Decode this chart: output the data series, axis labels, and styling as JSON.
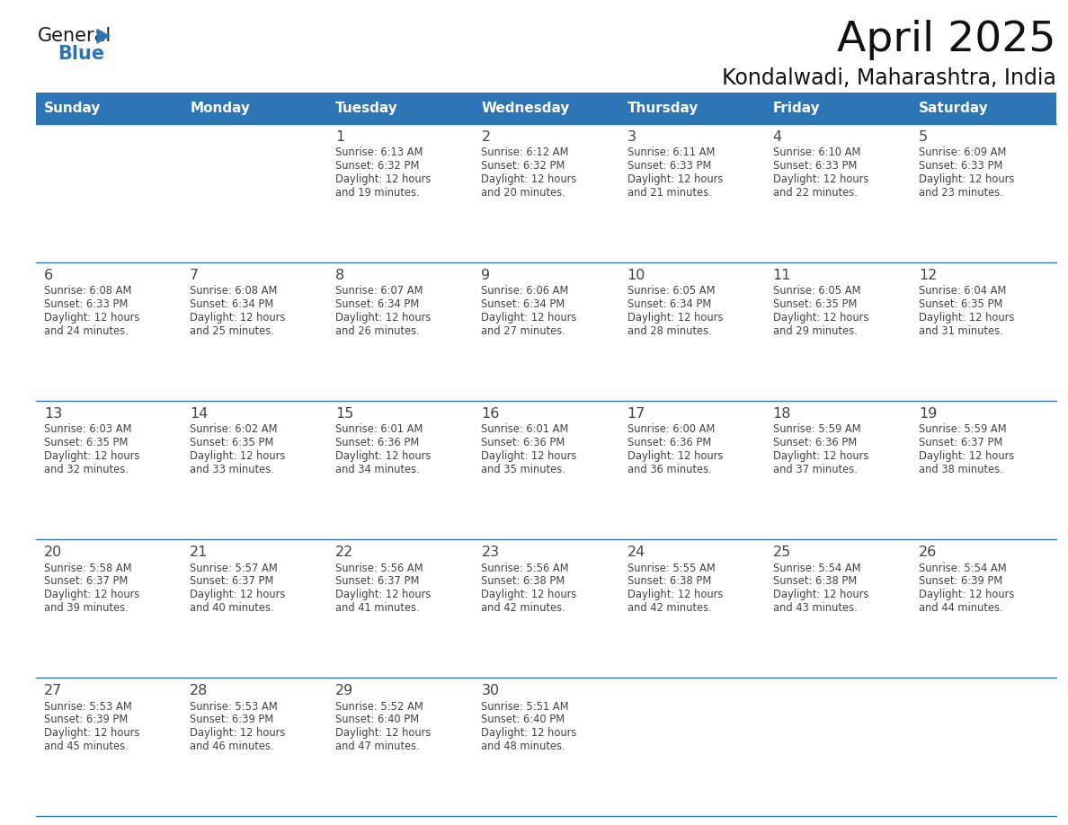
{
  "title": "April 2025",
  "subtitle": "Kondalwadi, Maharashtra, India",
  "header_bg": "#2E75B6",
  "header_text_color": "#FFFFFF",
  "border_color": "#2E75B6",
  "text_color": "#444444",
  "days_of_week": [
    "Sunday",
    "Monday",
    "Tuesday",
    "Wednesday",
    "Thursday",
    "Friday",
    "Saturday"
  ],
  "calendar_data": [
    [
      {
        "day": "",
        "sunrise": "",
        "sunset": "",
        "daylight": ""
      },
      {
        "day": "",
        "sunrise": "",
        "sunset": "",
        "daylight": ""
      },
      {
        "day": "1",
        "sunrise": "6:13 AM",
        "sunset": "6:32 PM",
        "daylight": "and 19 minutes."
      },
      {
        "day": "2",
        "sunrise": "6:12 AM",
        "sunset": "6:32 PM",
        "daylight": "and 20 minutes."
      },
      {
        "day": "3",
        "sunrise": "6:11 AM",
        "sunset": "6:33 PM",
        "daylight": "and 21 minutes."
      },
      {
        "day": "4",
        "sunrise": "6:10 AM",
        "sunset": "6:33 PM",
        "daylight": "and 22 minutes."
      },
      {
        "day": "5",
        "sunrise": "6:09 AM",
        "sunset": "6:33 PM",
        "daylight": "and 23 minutes."
      }
    ],
    [
      {
        "day": "6",
        "sunrise": "6:08 AM",
        "sunset": "6:33 PM",
        "daylight": "and 24 minutes."
      },
      {
        "day": "7",
        "sunrise": "6:08 AM",
        "sunset": "6:34 PM",
        "daylight": "and 25 minutes."
      },
      {
        "day": "8",
        "sunrise": "6:07 AM",
        "sunset": "6:34 PM",
        "daylight": "and 26 minutes."
      },
      {
        "day": "9",
        "sunrise": "6:06 AM",
        "sunset": "6:34 PM",
        "daylight": "and 27 minutes."
      },
      {
        "day": "10",
        "sunrise": "6:05 AM",
        "sunset": "6:34 PM",
        "daylight": "and 28 minutes."
      },
      {
        "day": "11",
        "sunrise": "6:05 AM",
        "sunset": "6:35 PM",
        "daylight": "and 29 minutes."
      },
      {
        "day": "12",
        "sunrise": "6:04 AM",
        "sunset": "6:35 PM",
        "daylight": "and 31 minutes."
      }
    ],
    [
      {
        "day": "13",
        "sunrise": "6:03 AM",
        "sunset": "6:35 PM",
        "daylight": "and 32 minutes."
      },
      {
        "day": "14",
        "sunrise": "6:02 AM",
        "sunset": "6:35 PM",
        "daylight": "and 33 minutes."
      },
      {
        "day": "15",
        "sunrise": "6:01 AM",
        "sunset": "6:36 PM",
        "daylight": "and 34 minutes."
      },
      {
        "day": "16",
        "sunrise": "6:01 AM",
        "sunset": "6:36 PM",
        "daylight": "and 35 minutes."
      },
      {
        "day": "17",
        "sunrise": "6:00 AM",
        "sunset": "6:36 PM",
        "daylight": "and 36 minutes."
      },
      {
        "day": "18",
        "sunrise": "5:59 AM",
        "sunset": "6:36 PM",
        "daylight": "and 37 minutes."
      },
      {
        "day": "19",
        "sunrise": "5:59 AM",
        "sunset": "6:37 PM",
        "daylight": "and 38 minutes."
      }
    ],
    [
      {
        "day": "20",
        "sunrise": "5:58 AM",
        "sunset": "6:37 PM",
        "daylight": "and 39 minutes."
      },
      {
        "day": "21",
        "sunrise": "5:57 AM",
        "sunset": "6:37 PM",
        "daylight": "and 40 minutes."
      },
      {
        "day": "22",
        "sunrise": "5:56 AM",
        "sunset": "6:37 PM",
        "daylight": "and 41 minutes."
      },
      {
        "day": "23",
        "sunrise": "5:56 AM",
        "sunset": "6:38 PM",
        "daylight": "and 42 minutes."
      },
      {
        "day": "24",
        "sunrise": "5:55 AM",
        "sunset": "6:38 PM",
        "daylight": "and 42 minutes."
      },
      {
        "day": "25",
        "sunrise": "5:54 AM",
        "sunset": "6:38 PM",
        "daylight": "and 43 minutes."
      },
      {
        "day": "26",
        "sunrise": "5:54 AM",
        "sunset": "6:39 PM",
        "daylight": "and 44 minutes."
      }
    ],
    [
      {
        "day": "27",
        "sunrise": "5:53 AM",
        "sunset": "6:39 PM",
        "daylight": "and 45 minutes."
      },
      {
        "day": "28",
        "sunrise": "5:53 AM",
        "sunset": "6:39 PM",
        "daylight": "and 46 minutes."
      },
      {
        "day": "29",
        "sunrise": "5:52 AM",
        "sunset": "6:40 PM",
        "daylight": "and 47 minutes."
      },
      {
        "day": "30",
        "sunrise": "5:51 AM",
        "sunset": "6:40 PM",
        "daylight": "and 48 minutes."
      },
      {
        "day": "",
        "sunrise": "",
        "sunset": "",
        "daylight": ""
      },
      {
        "day": "",
        "sunrise": "",
        "sunset": "",
        "daylight": ""
      },
      {
        "day": "",
        "sunrise": "",
        "sunset": "",
        "daylight": ""
      }
    ]
  ],
  "logo_color_general": "#1a1a1a",
  "logo_color_blue": "#2E75B6",
  "logo_triangle_color": "#2E75B6",
  "fig_width": 11.88,
  "fig_height": 9.18,
  "dpi": 100
}
